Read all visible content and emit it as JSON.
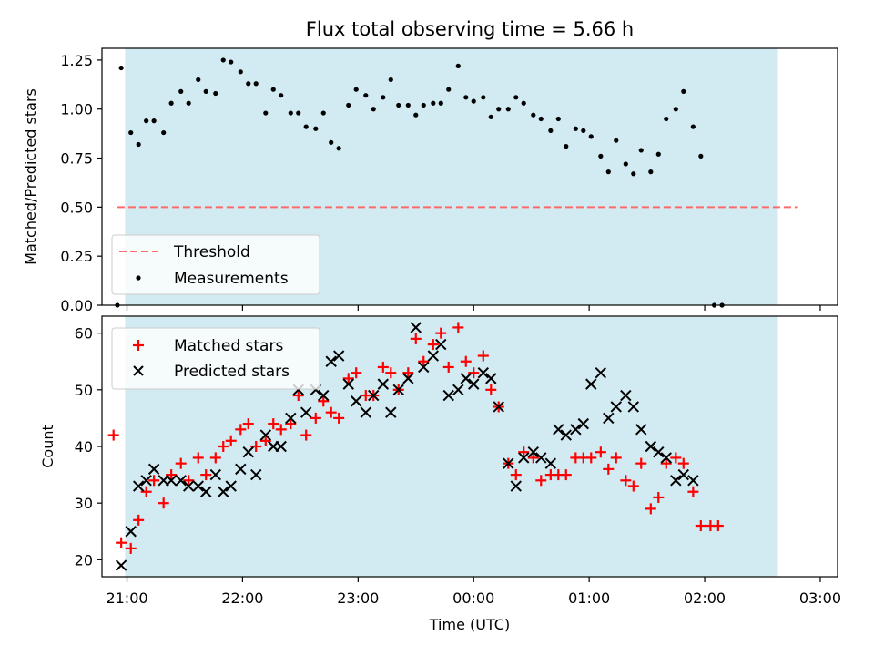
{
  "title": "Flux total observing time = 5.66 h",
  "chart_data": [
    {
      "type": "scatter",
      "title": "Flux total observing time = 5.66 h",
      "ylabel": "Matched/Predicted stars",
      "xlabel": "",
      "ylim": [
        0,
        1.31
      ],
      "yticks": [
        0,
        0.25,
        0.5,
        0.75,
        1.0,
        1.25
      ],
      "ytick_labels": [
        "0.00",
        "0.25",
        "0.50",
        "0.75",
        "1.00",
        "1.25"
      ],
      "xlim": [
        "20:47",
        "03:09"
      ],
      "grid": false,
      "legend_position": "lower-left",
      "shaded_interval": [
        "20:59",
        "02:38"
      ],
      "shade_color": "#add8e6",
      "threshold": {
        "name": "Threshold",
        "value": 0.5,
        "x_range": [
          "20:55",
          "02:48"
        ],
        "color": "#ff6b6b"
      },
      "series": [
        {
          "name": "Measurements",
          "color": "#000000",
          "points": [
            [
              "20:55",
              0.0
            ],
            [
              "20:57",
              1.21
            ],
            [
              "21:02",
              0.88
            ],
            [
              "21:06",
              0.82
            ],
            [
              "21:10",
              0.94
            ],
            [
              "21:14",
              0.94
            ],
            [
              "21:19",
              0.88
            ],
            [
              "21:23",
              1.03
            ],
            [
              "21:28",
              1.09
            ],
            [
              "21:32",
              1.03
            ],
            [
              "21:37",
              1.15
            ],
            [
              "21:41",
              1.09
            ],
            [
              "21:46",
              1.08
            ],
            [
              "21:50",
              1.25
            ],
            [
              "21:54",
              1.24
            ],
            [
              "21:59",
              1.19
            ],
            [
              "22:03",
              1.13
            ],
            [
              "22:07",
              1.13
            ],
            [
              "22:12",
              0.98
            ],
            [
              "22:16",
              1.1
            ],
            [
              "22:20",
              1.07
            ],
            [
              "22:25",
              0.98
            ],
            [
              "22:29",
              0.98
            ],
            [
              "22:33",
              0.91
            ],
            [
              "22:38",
              0.9
            ],
            [
              "22:42",
              0.98
            ],
            [
              "22:46",
              0.83
            ],
            [
              "22:50",
              0.8
            ],
            [
              "22:55",
              1.02
            ],
            [
              "22:59",
              1.1
            ],
            [
              "23:04",
              1.07
            ],
            [
              "23:08",
              1.0
            ],
            [
              "23:13",
              1.06
            ],
            [
              "23:17",
              1.15
            ],
            [
              "23:21",
              1.02
            ],
            [
              "23:26",
              1.02
            ],
            [
              "23:30",
              0.97
            ],
            [
              "23:34",
              1.02
            ],
            [
              "23:39",
              1.03
            ],
            [
              "23:43",
              1.03
            ],
            [
              "23:47",
              1.1
            ],
            [
              "23:52",
              1.22
            ],
            [
              "23:56",
              1.06
            ],
            [
              "00:00",
              1.04
            ],
            [
              "00:05",
              1.06
            ],
            [
              "00:09",
              0.96
            ],
            [
              "00:13",
              1.0
            ],
            [
              "00:18",
              1.0
            ],
            [
              "00:22",
              1.06
            ],
            [
              "00:26",
              1.03
            ],
            [
              "00:31",
              0.97
            ],
            [
              "00:35",
              0.95
            ],
            [
              "00:40",
              0.89
            ],
            [
              "00:44",
              0.95
            ],
            [
              "00:48",
              0.81
            ],
            [
              "00:53",
              0.9
            ],
            [
              "00:57",
              0.89
            ],
            [
              "01:01",
              0.86
            ],
            [
              "01:06",
              0.76
            ],
            [
              "01:10",
              0.68
            ],
            [
              "01:14",
              0.84
            ],
            [
              "01:19",
              0.72
            ],
            [
              "01:23",
              0.67
            ],
            [
              "01:27",
              0.79
            ],
            [
              "01:32",
              0.68
            ],
            [
              "01:36",
              0.77
            ],
            [
              "01:40",
              0.95
            ],
            [
              "01:45",
              1.0
            ],
            [
              "01:49",
              1.09
            ],
            [
              "01:54",
              0.91
            ],
            [
              "01:58",
              0.76
            ],
            [
              "02:05",
              0.0
            ],
            [
              "02:09",
              0.0
            ]
          ]
        }
      ]
    },
    {
      "type": "scatter",
      "title": "",
      "ylabel": "Count",
      "xlabel": "Time (UTC)",
      "ylim": [
        17,
        63
      ],
      "yticks": [
        20,
        30,
        40,
        50,
        60
      ],
      "ytick_labels": [
        "20",
        "30",
        "40",
        "50",
        "60"
      ],
      "xlim": [
        "20:47",
        "03:09"
      ],
      "xticks": [
        "21:00",
        "22:00",
        "23:00",
        "00:00",
        "01:00",
        "02:00",
        "03:00"
      ],
      "xtick_labels": [
        "21:00",
        "22:00",
        "23:00",
        "00:00",
        "01:00",
        "02:00",
        "03:00"
      ],
      "grid": false,
      "legend_position": "top-left",
      "shaded_interval": [
        "20:59",
        "02:38"
      ],
      "shade_color": "#add8e6",
      "series": [
        {
          "name": "Matched stars",
          "marker": "+",
          "color": "#ff0000",
          "points": [
            [
              "20:53",
              42
            ],
            [
              "20:57",
              23
            ],
            [
              "21:02",
              22
            ],
            [
              "21:06",
              27
            ],
            [
              "21:10",
              32
            ],
            [
              "21:14",
              34
            ],
            [
              "21:19",
              30
            ],
            [
              "21:23",
              35
            ],
            [
              "21:28",
              37
            ],
            [
              "21:32",
              34
            ],
            [
              "21:37",
              38
            ],
            [
              "21:41",
              35
            ],
            [
              "21:46",
              38
            ],
            [
              "21:50",
              40
            ],
            [
              "21:54",
              41
            ],
            [
              "21:59",
              43
            ],
            [
              "22:03",
              44
            ],
            [
              "22:07",
              40
            ],
            [
              "22:12",
              41
            ],
            [
              "22:16",
              44
            ],
            [
              "22:20",
              43
            ],
            [
              "22:25",
              44
            ],
            [
              "22:29",
              49
            ],
            [
              "22:33",
              42
            ],
            [
              "22:38",
              45
            ],
            [
              "22:42",
              48
            ],
            [
              "22:46",
              46
            ],
            [
              "22:50",
              45
            ],
            [
              "22:55",
              52
            ],
            [
              "22:59",
              53
            ],
            [
              "23:04",
              49
            ],
            [
              "23:08",
              49
            ],
            [
              "23:13",
              54
            ],
            [
              "23:17",
              53
            ],
            [
              "23:21",
              50
            ],
            [
              "23:26",
              53
            ],
            [
              "23:30",
              59
            ],
            [
              "23:34",
              55
            ],
            [
              "23:39",
              58
            ],
            [
              "23:43",
              60
            ],
            [
              "23:47",
              54
            ],
            [
              "23:52",
              61
            ],
            [
              "23:56",
              55
            ],
            [
              "00:00",
              53
            ],
            [
              "00:05",
              56
            ],
            [
              "00:09",
              50
            ],
            [
              "00:13",
              47
            ],
            [
              "00:18",
              37
            ],
            [
              "00:22",
              35
            ],
            [
              "00:26",
              39
            ],
            [
              "00:31",
              38
            ],
            [
              "00:35",
              34
            ],
            [
              "00:40",
              35
            ],
            [
              "00:44",
              35
            ],
            [
              "00:48",
              35
            ],
            [
              "00:53",
              38
            ],
            [
              "00:57",
              38
            ],
            [
              "01:01",
              38
            ],
            [
              "01:06",
              39
            ],
            [
              "01:10",
              36
            ],
            [
              "01:14",
              38
            ],
            [
              "01:19",
              34
            ],
            [
              "01:23",
              33
            ],
            [
              "01:27",
              37
            ],
            [
              "01:32",
              29
            ],
            [
              "01:36",
              31
            ],
            [
              "01:40",
              37
            ],
            [
              "01:45",
              38
            ],
            [
              "01:49",
              37
            ],
            [
              "01:54",
              32
            ],
            [
              "01:58",
              26
            ],
            [
              "02:03",
              26
            ],
            [
              "02:07",
              26
            ]
          ]
        },
        {
          "name": "Predicted stars",
          "marker": "x",
          "color": "#000000",
          "points": [
            [
              "20:57",
              19
            ],
            [
              "21:02",
              25
            ],
            [
              "21:06",
              33
            ],
            [
              "21:10",
              34
            ],
            [
              "21:14",
              36
            ],
            [
              "21:19",
              34
            ],
            [
              "21:23",
              34
            ],
            [
              "21:28",
              34
            ],
            [
              "21:32",
              33
            ],
            [
              "21:37",
              33
            ],
            [
              "21:41",
              32
            ],
            [
              "21:46",
              35
            ],
            [
              "21:50",
              32
            ],
            [
              "21:54",
              33
            ],
            [
              "21:59",
              36
            ],
            [
              "22:03",
              39
            ],
            [
              "22:07",
              35
            ],
            [
              "22:12",
              42
            ],
            [
              "22:16",
              40
            ],
            [
              "22:20",
              40
            ],
            [
              "22:25",
              45
            ],
            [
              "22:29",
              50
            ],
            [
              "22:33",
              46
            ],
            [
              "22:38",
              50
            ],
            [
              "22:42",
              49
            ],
            [
              "22:46",
              55
            ],
            [
              "22:50",
              56
            ],
            [
              "22:55",
              51
            ],
            [
              "22:59",
              48
            ],
            [
              "23:04",
              46
            ],
            [
              "23:08",
              49
            ],
            [
              "23:13",
              51
            ],
            [
              "23:17",
              46
            ],
            [
              "23:21",
              50
            ],
            [
              "23:26",
              52
            ],
            [
              "23:30",
              61
            ],
            [
              "23:34",
              54
            ],
            [
              "23:39",
              56
            ],
            [
              "23:43",
              58
            ],
            [
              "23:47",
              49
            ],
            [
              "23:52",
              50
            ],
            [
              "23:56",
              52
            ],
            [
              "00:00",
              51
            ],
            [
              "00:05",
              53
            ],
            [
              "00:09",
              52
            ],
            [
              "00:13",
              47
            ],
            [
              "00:18",
              37
            ],
            [
              "00:22",
              33
            ],
            [
              "00:26",
              38
            ],
            [
              "00:31",
              39
            ],
            [
              "00:35",
              38
            ],
            [
              "00:40",
              37
            ],
            [
              "00:44",
              43
            ],
            [
              "00:48",
              42
            ],
            [
              "00:53",
              43
            ],
            [
              "00:57",
              44
            ],
            [
              "01:01",
              51
            ],
            [
              "01:06",
              53
            ],
            [
              "01:10",
              45
            ],
            [
              "01:14",
              47
            ],
            [
              "01:19",
              49
            ],
            [
              "01:23",
              47
            ],
            [
              "01:27",
              43
            ],
            [
              "01:32",
              40
            ],
            [
              "01:36",
              39
            ],
            [
              "01:40",
              38
            ],
            [
              "01:45",
              34
            ],
            [
              "01:49",
              35
            ],
            [
              "01:54",
              34
            ]
          ]
        }
      ]
    }
  ]
}
